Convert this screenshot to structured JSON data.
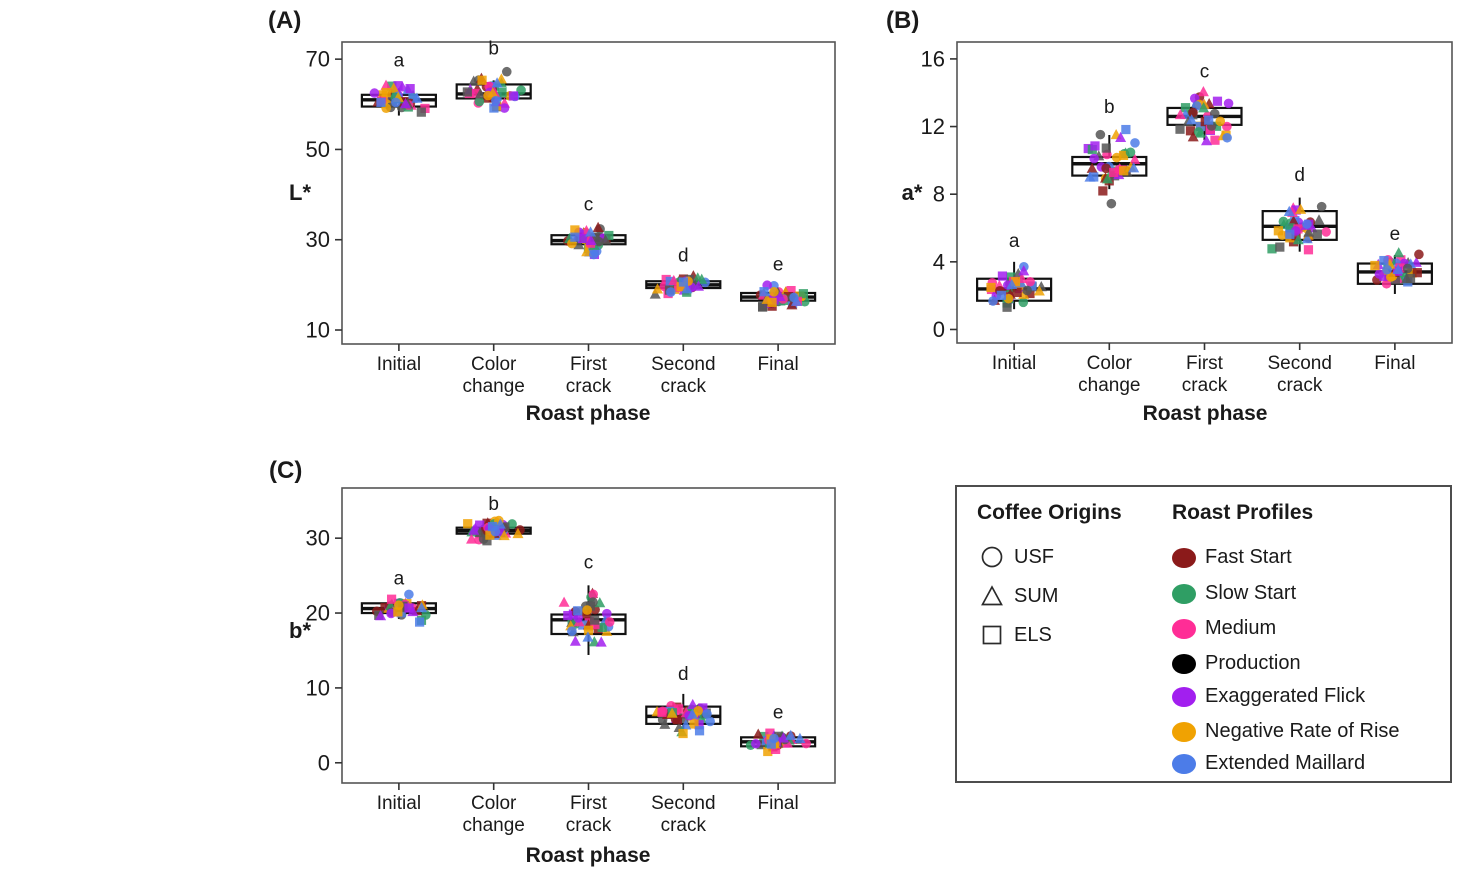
{
  "style": {
    "background": "#ffffff",
    "plot_border_color": "#555555",
    "box_color": "#111111",
    "text_color": "#1a1a1a",
    "legend_border_color": "#4d4d4d",
    "point_opacity": 0.85
  },
  "chart_data": [
    {
      "type": "boxplot",
      "panel_label": "(A)",
      "ylabel": "L*",
      "xlabel": "Roast phase",
      "categories": [
        "Initial",
        "Color change",
        "First crack",
        "Second crack",
        "Final"
      ],
      "yticks": [
        10,
        30,
        50,
        70
      ],
      "ylim": [
        6.9,
        73.8
      ],
      "grid": false,
      "jitter_points_per_group": 42,
      "groups": [
        {
          "letter": "a",
          "q1": 59.5,
          "median": 61.0,
          "q3": 62.1,
          "whisker_lo": 57.5,
          "whisker_hi": 63.5,
          "points_lo": 56.2,
          "points_hi": 66.2
        },
        {
          "letter": "b",
          "q1": 61.3,
          "median": 62.3,
          "q3": 64.4,
          "whisker_lo": 58.6,
          "whisker_hi": 65.3,
          "points_lo": 57.2,
          "points_hi": 68.8
        },
        {
          "letter": "c",
          "q1": 29.0,
          "median": 29.8,
          "q3": 31.0,
          "whisker_lo": 27.9,
          "whisker_hi": 31.8,
          "points_lo": 24.6,
          "points_hi": 34.3
        },
        {
          "letter": "d",
          "q1": 19.3,
          "median": 20.0,
          "q3": 20.8,
          "whisker_lo": 18.4,
          "whisker_hi": 21.5,
          "points_lo": 16.4,
          "points_hi": 23.0
        },
        {
          "letter": "e",
          "q1": 16.5,
          "median": 17.3,
          "q3": 18.2,
          "whisker_lo": 15.4,
          "whisker_hi": 19.1,
          "points_lo": 13.1,
          "points_hi": 21.0
        }
      ]
    },
    {
      "type": "boxplot",
      "panel_label": "(B)",
      "ylabel": "a*",
      "xlabel": "Roast phase",
      "categories": [
        "Initial",
        "Color change",
        "First crack",
        "Second crack",
        "Final"
      ],
      "yticks": [
        0,
        4,
        8,
        12,
        16
      ],
      "ylim": [
        -0.8,
        17.0
      ],
      "grid": false,
      "jitter_points_per_group": 42,
      "groups": [
        {
          "letter": "a",
          "q1": 1.7,
          "median": 2.4,
          "q3": 3.0,
          "whisker_lo": 1.2,
          "whisker_hi": 4.0,
          "points_lo": 1.0,
          "points_hi": 4.3
        },
        {
          "letter": "b",
          "q1": 9.1,
          "median": 9.8,
          "q3": 10.2,
          "whisker_lo": 8.3,
          "whisker_hi": 11.5,
          "points_lo": 6.5,
          "points_hi": 12.2
        },
        {
          "letter": "c",
          "q1": 12.1,
          "median": 12.6,
          "q3": 13.1,
          "whisker_lo": 11.2,
          "whisker_hi": 13.4,
          "points_lo": 10.4,
          "points_hi": 14.3
        },
        {
          "letter": "d",
          "q1": 5.3,
          "median": 6.1,
          "q3": 7.0,
          "whisker_lo": 4.6,
          "whisker_hi": 7.8,
          "points_lo": 4.2,
          "points_hi": 8.2
        },
        {
          "letter": "e",
          "q1": 2.7,
          "median": 3.4,
          "q3": 3.9,
          "whisker_lo": 2.1,
          "whisker_hi": 4.4,
          "points_lo": 1.6,
          "points_hi": 4.7
        }
      ]
    },
    {
      "type": "boxplot",
      "panel_label": "(C)",
      "ylabel": "b*",
      "xlabel": "Roast phase",
      "categories": [
        "Initial",
        "Color change",
        "First crack",
        "Second crack",
        "Final"
      ],
      "yticks": [
        0,
        10,
        20,
        30
      ],
      "ylim": [
        -2.7,
        36.7
      ],
      "grid": false,
      "jitter_points_per_group": 42,
      "groups": [
        {
          "letter": "a",
          "q1": 20.0,
          "median": 20.6,
          "q3": 21.3,
          "whisker_lo": 19.2,
          "whisker_hi": 21.9,
          "points_lo": 17.4,
          "points_hi": 22.5
        },
        {
          "letter": "b",
          "q1": 30.6,
          "median": 31.0,
          "q3": 31.4,
          "whisker_lo": 30.0,
          "whisker_hi": 31.9,
          "points_lo": 28.3,
          "points_hi": 32.4
        },
        {
          "letter": "c",
          "q1": 17.2,
          "median": 19.1,
          "q3": 19.8,
          "whisker_lo": 14.4,
          "whisker_hi": 23.7,
          "points_lo": 12.8,
          "points_hi": 24.6
        },
        {
          "letter": "d",
          "q1": 5.2,
          "median": 6.2,
          "q3": 7.5,
          "whisker_lo": 4.5,
          "whisker_hi": 9.2,
          "points_lo": 3.3,
          "points_hi": 9.7
        },
        {
          "letter": "e",
          "q1": 2.2,
          "median": 2.8,
          "q3": 3.4,
          "whisker_lo": 1.7,
          "whisker_hi": 3.9,
          "points_lo": 0.9,
          "points_hi": 4.6
        }
      ]
    }
  ],
  "legend": {
    "coffee_origins": {
      "title": "Coffee Origins",
      "items": [
        {
          "label": "USF",
          "shape": "circle"
        },
        {
          "label": "SUM",
          "shape": "triangle"
        },
        {
          "label": "ELS",
          "shape": "square"
        }
      ]
    },
    "roast_profiles": {
      "title": "Roast Profiles",
      "items": [
        {
          "label": "Fast Start",
          "color": "#8B1A1A"
        },
        {
          "label": "Slow Start",
          "color": "#2F9E64"
        },
        {
          "label": "Medium",
          "color": "#FF2D96"
        },
        {
          "label": "Production",
          "color": "#000000",
          "plot_color": "#555555"
        },
        {
          "label": "Exaggerated Flick",
          "color": "#A21FEF"
        },
        {
          "label": "Negative Rate of Rise",
          "color": "#F0A202"
        },
        {
          "label": "Extended Maillard",
          "color": "#4C7CE8"
        }
      ]
    }
  }
}
